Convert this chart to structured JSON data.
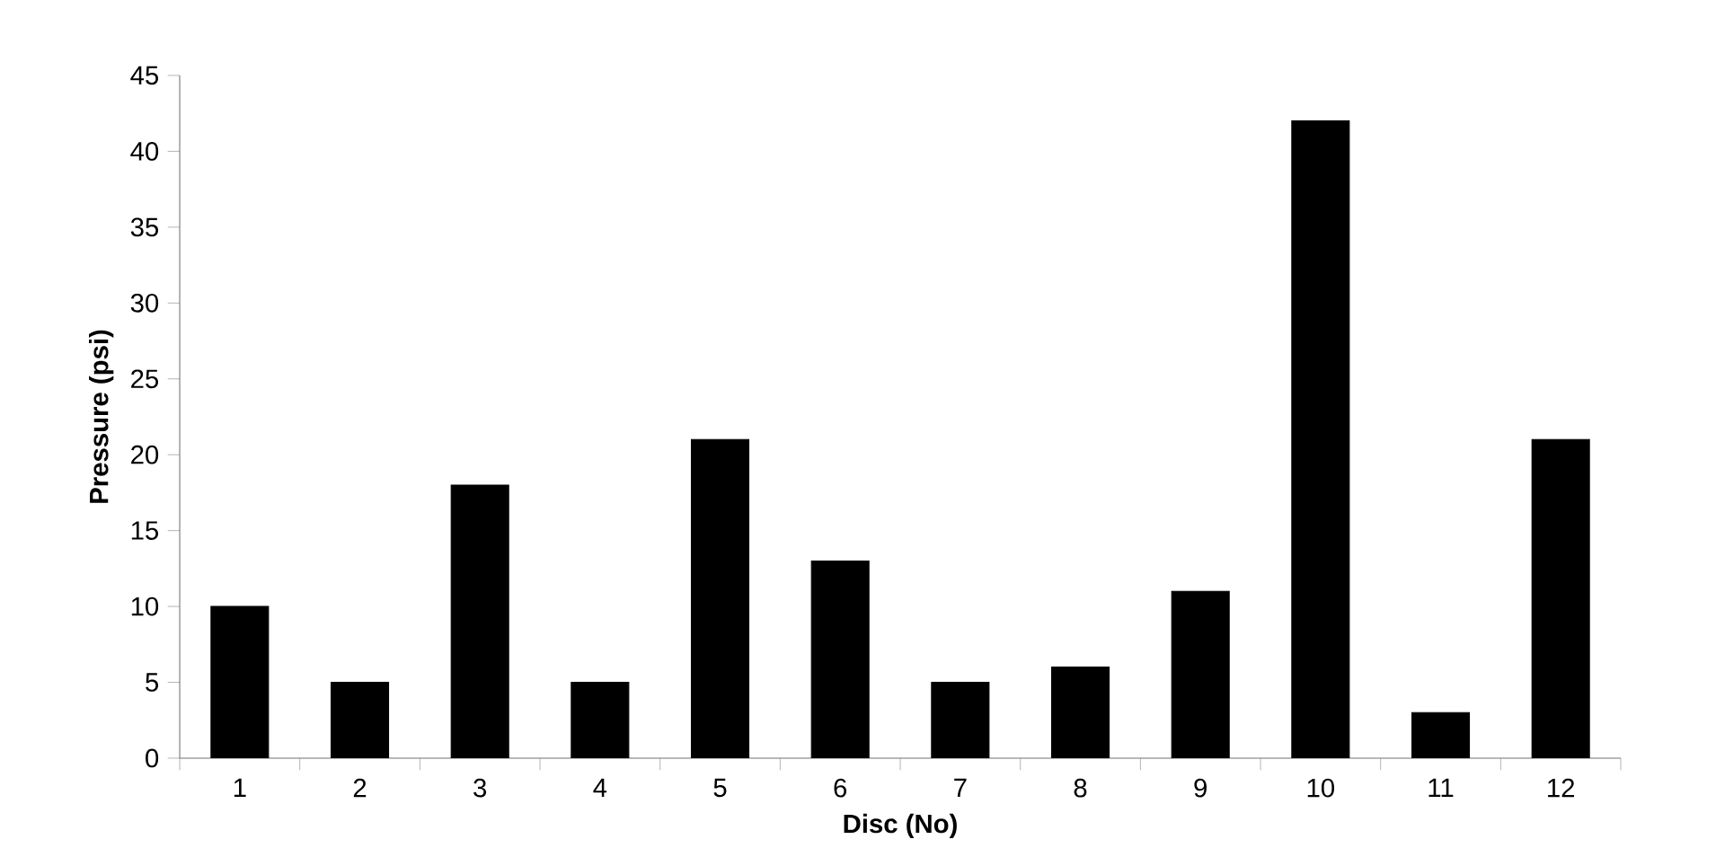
{
  "chart_data": {
    "type": "bar",
    "xlabel": "Disc (No)",
    "ylabel": "Pressure (psi)",
    "categories": [
      "1",
      "2",
      "3",
      "4",
      "5",
      "6",
      "7",
      "8",
      "9",
      "10",
      "11",
      "12"
    ],
    "values": [
      10,
      5,
      18,
      5,
      21,
      13,
      5,
      6,
      11,
      42,
      3,
      21
    ],
    "color": "#000000",
    "ylim": [
      0,
      45
    ],
    "yticks": [
      0,
      5,
      10,
      15,
      20,
      25,
      30,
      35,
      40,
      45
    ],
    "grid": false
  }
}
